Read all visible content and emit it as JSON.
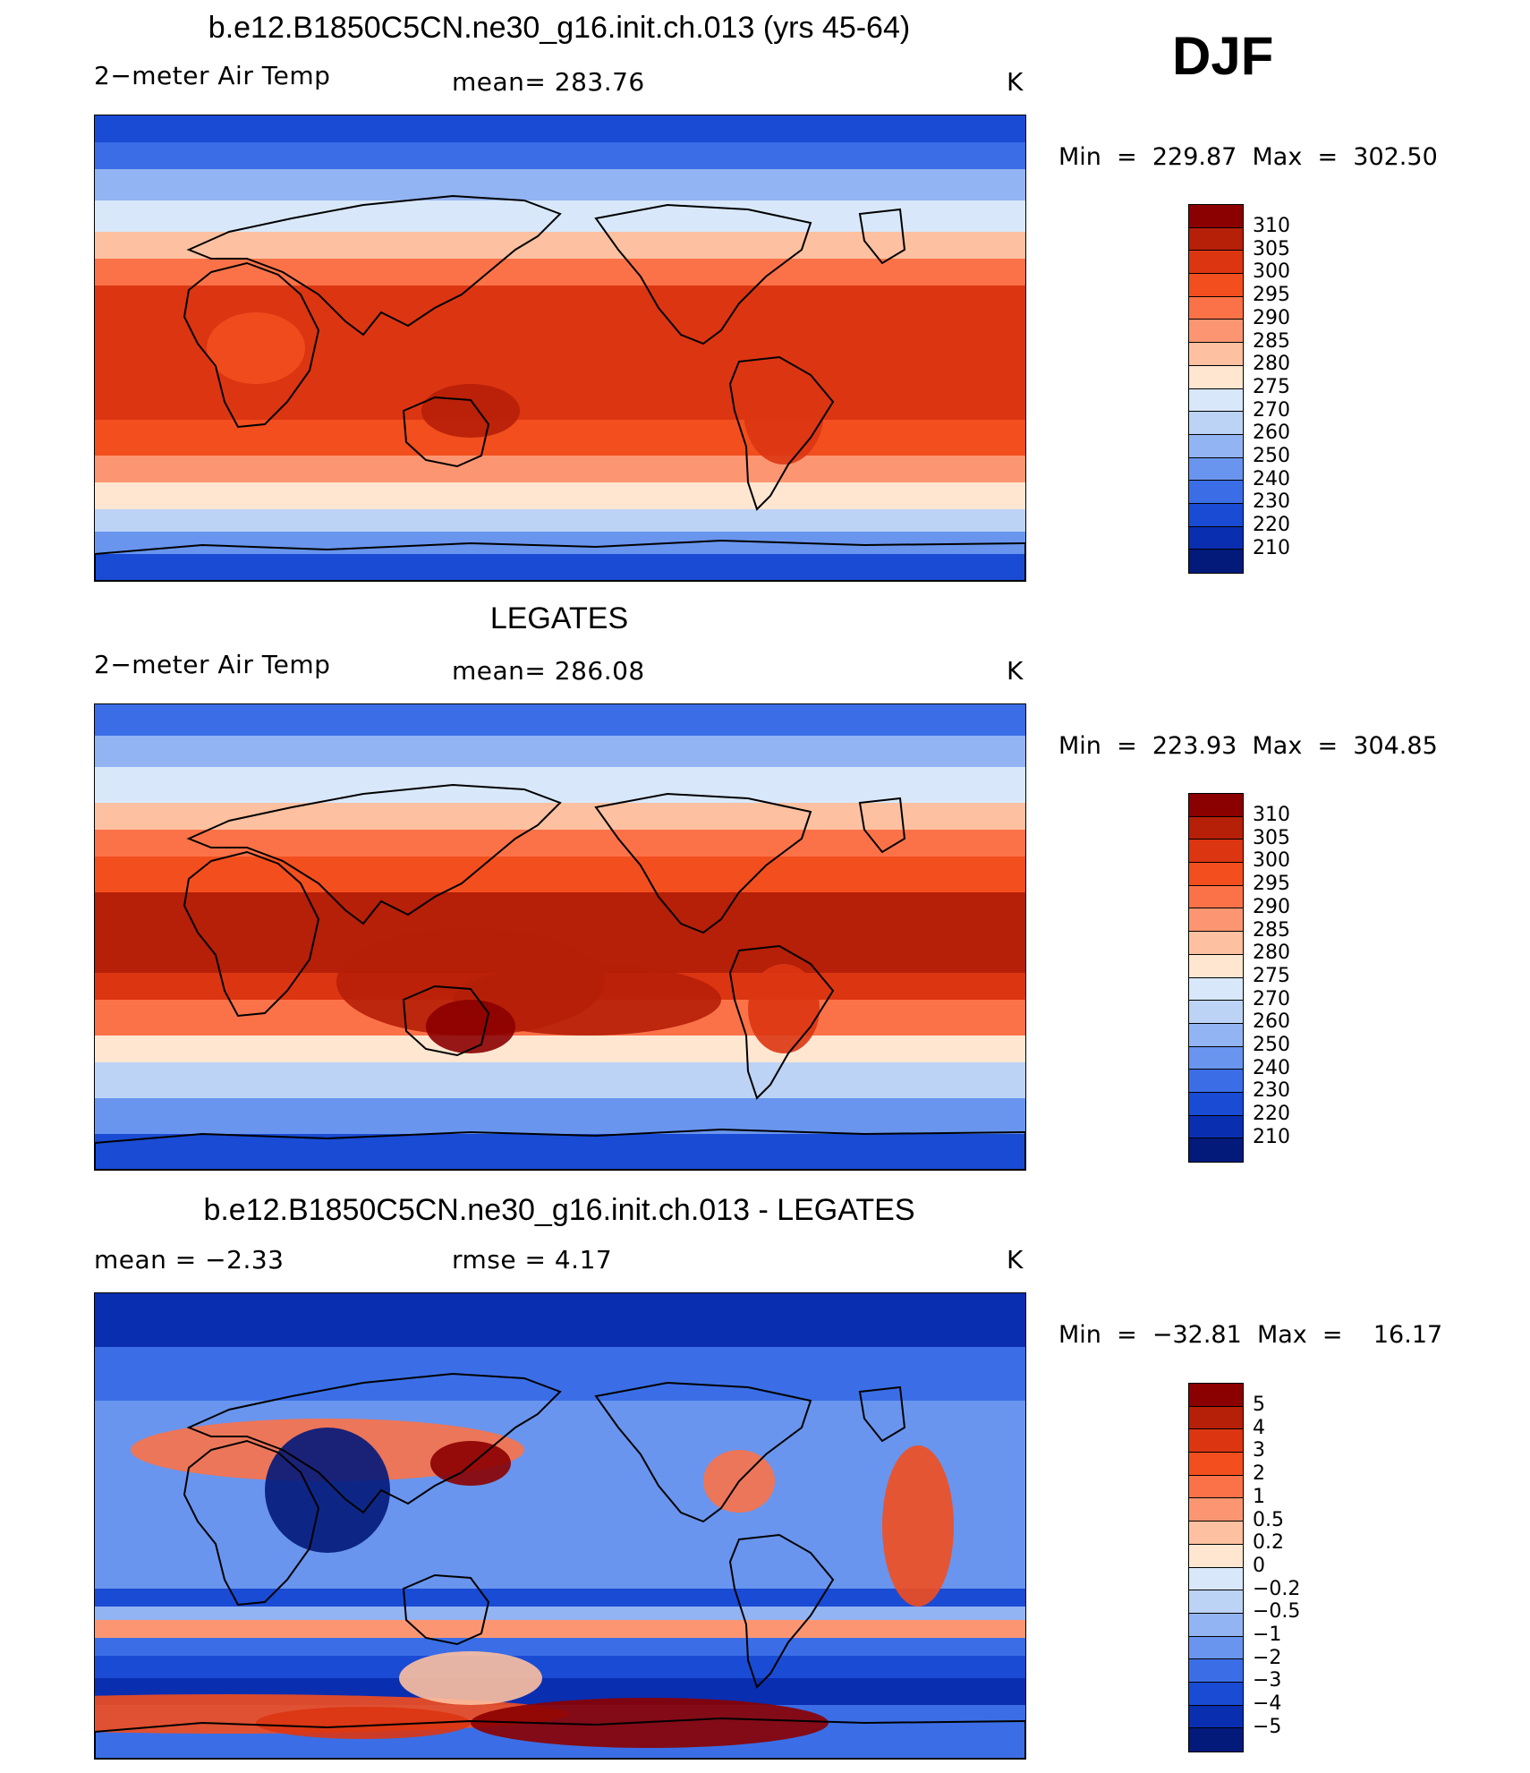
{
  "season": "DJF",
  "panels": [
    {
      "title": "b.e12.B1850C5CN.ne30_g16.init.ch.013 (yrs 45-64)",
      "left_label": "2−meter Air Temp",
      "center_label": "mean=  283.76",
      "units": "K",
      "minmax": "Min  =  229.87  Max  =  302.50",
      "levels": [
        "310",
        "305",
        "300",
        "295",
        "290",
        "285",
        "280",
        "275",
        "270",
        "260",
        "250",
        "240",
        "230",
        "220",
        "210"
      ],
      "colors": [
        "#8b0000",
        "#b61f08",
        "#dc3512",
        "#f24e1e",
        "#fb7248",
        "#fc9672",
        "#fdc0a0",
        "#fee6d1",
        "#d8e8fa",
        "#bcd3f6",
        "#93b4f2",
        "#6995ee",
        "#3b6ee6",
        "#1a4bd4",
        "#0a2eb0",
        "#031a7a"
      ],
      "regions": "model"
    },
    {
      "title": "LEGATES",
      "left_label": "2−meter Air Temp",
      "center_label": "mean=  286.08",
      "units": "K",
      "minmax": "Min  =  223.93  Max  =  304.85",
      "levels": [
        "310",
        "305",
        "300",
        "295",
        "290",
        "285",
        "280",
        "275",
        "270",
        "260",
        "250",
        "240",
        "230",
        "220",
        "210"
      ],
      "colors": [
        "#8b0000",
        "#b61f08",
        "#dc3512",
        "#f24e1e",
        "#fb7248",
        "#fc9672",
        "#fdc0a0",
        "#fee6d1",
        "#d8e8fa",
        "#bcd3f6",
        "#93b4f2",
        "#6995ee",
        "#3b6ee6",
        "#1a4bd4",
        "#0a2eb0",
        "#031a7a"
      ],
      "regions": "obs"
    },
    {
      "title": "b.e12.B1850C5CN.ne30_g16.init.ch.013 - LEGATES",
      "left_label": "mean =    −2.33",
      "center_label": "rmse =     4.17",
      "units": "K",
      "minmax": "Min  =  −32.81  Max  =    16.17",
      "levels": [
        "5",
        "4",
        "3",
        "2",
        "1",
        "0.5",
        "0.2",
        "0",
        "−0.2",
        "−0.5",
        "−1",
        "−2",
        "−3",
        "−4",
        "−5"
      ],
      "colors": [
        "#8b0000",
        "#b61f08",
        "#dc3512",
        "#f24e1e",
        "#fb7248",
        "#fc9672",
        "#fdc0a0",
        "#fee6d1",
        "#d8e8fa",
        "#bcd3f6",
        "#93b4f2",
        "#6995ee",
        "#3b6ee6",
        "#1a4bd4",
        "#0a2eb0",
        "#031a7a"
      ],
      "regions": "diff"
    }
  ]
}
